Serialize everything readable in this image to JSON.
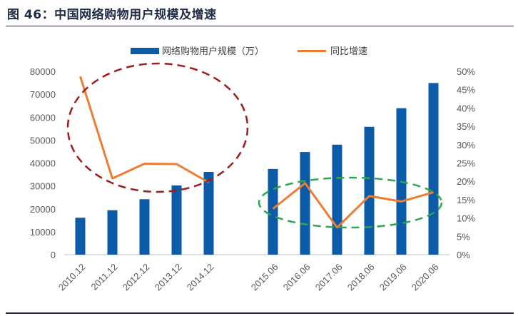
{
  "title": "图 46：中国网络购物用户规模及增速",
  "chart_data": {
    "type": "bar",
    "categories": [
      "2010.12",
      "2011.12",
      "2012.12",
      "2013.12",
      "2014.12",
      "",
      "2015.06",
      "2016.06",
      "2017.06",
      "2018.06",
      "2019.06",
      "2020.06"
    ],
    "series": [
      {
        "name": "网络购物用户规模（万）",
        "type": "bar",
        "axis": "left",
        "color": "#0b5ba8",
        "values": [
          16100,
          19400,
          24200,
          30200,
          36100,
          null,
          37400,
          44800,
          48000,
          55800,
          63900,
          74900
        ]
      },
      {
        "name": "同比增速",
        "type": "line",
        "axis": "right",
        "color": "#ed7d31",
        "values": [
          48.6,
          20.8,
          24.8,
          24.7,
          19.7,
          null,
          12.5,
          19.5,
          7.4,
          16.0,
          14.5,
          17.0
        ]
      }
    ],
    "y_left": {
      "min": 0,
      "max": 80000,
      "step": 10000
    },
    "y_right": {
      "min": 0,
      "max": 50,
      "step": 5,
      "unit": "%"
    },
    "legend_position": "top-center",
    "grid": false,
    "annotations": [
      {
        "shape": "dashed-ellipse",
        "color": "#a01c1c",
        "around": "2010.12-2014.12"
      },
      {
        "shape": "dashed-ellipse",
        "color": "#2aa84a",
        "around": "2015.06-2020.06"
      }
    ]
  }
}
